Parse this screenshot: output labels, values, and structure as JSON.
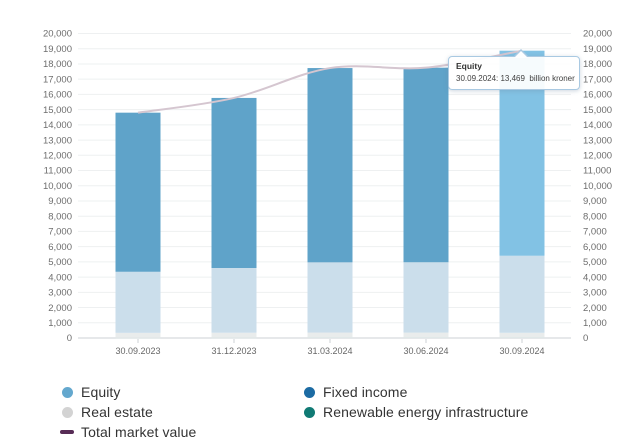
{
  "tooltip": {
    "title": "Equity",
    "line": "30.09.2024: 13,469  billion kroner"
  },
  "legend": {
    "col1": [
      {
        "label": "Equity",
        "marker": "circle",
        "color": "#64a8ce"
      },
      {
        "label": "Real estate",
        "marker": "circle",
        "color": "#d3d3d3"
      },
      {
        "label": "Total market value",
        "marker": "dash",
        "color": "#572c56"
      }
    ],
    "col2": [
      {
        "label": "Fixed income",
        "marker": "circle",
        "color": "#1c6ba3"
      },
      {
        "label": "Renewable energy infrastructure",
        "marker": "circle",
        "color": "#107a74"
      }
    ]
  },
  "colors": {
    "grid": "#eef0f1",
    "axis_line": "#ccd2d5",
    "axis_text": "#6d6d6d",
    "tooltip_border": "#a9c9e2"
  },
  "chart_data": {
    "type": "bar",
    "stacked": true,
    "title": "",
    "xlabel": "",
    "ylabel": "",
    "unit": "billion kroner",
    "categories": [
      "30.09.2023",
      "31.12.2023",
      "31.03.2024",
      "30.06.2024",
      "30.09.2024"
    ],
    "stack_order": "bottom_to_top",
    "series": [
      {
        "name": "Renewable energy infrastructure",
        "values": [
          15,
          18,
          25,
          25,
          28
        ],
        "legend_color": "#107a74",
        "bar_color": "#d6e8e6",
        "faded": true
      },
      {
        "name": "Real estate",
        "values": [
          325,
          330,
          335,
          330,
          315
        ],
        "legend_color": "#d3d3d3",
        "bar_color": "#e9ecec",
        "faded": true
      },
      {
        "name": "Fixed income",
        "values": [
          4010,
          4250,
          4610,
          4620,
          5060
        ],
        "legend_color": "#1c6ba3",
        "bar_color": "#cbdeeb",
        "faded": true
      },
      {
        "name": "Equity",
        "values": [
          10450,
          11170,
          12760,
          12780,
          13469
        ],
        "legend_color": "#64a8ce",
        "bar_color": "#5fa3c9",
        "hover_color": "#82c2e4",
        "hover_index": 4
      }
    ],
    "line_series": {
      "name": "Total market value",
      "values": [
        14800,
        15768,
        17730,
        17755,
        18872
      ],
      "legend_color": "#572c56",
      "line_color": "#d5c6d0",
      "faded": true
    },
    "hover": {
      "series": "Equity",
      "category": "30.09.2024",
      "value": "13,469"
    },
    "ylim": [
      0,
      20000
    ],
    "ytick_step": 1000,
    "y_axis_sides": [
      "left",
      "right"
    ],
    "grid": true,
    "legend_position": "bottom"
  }
}
